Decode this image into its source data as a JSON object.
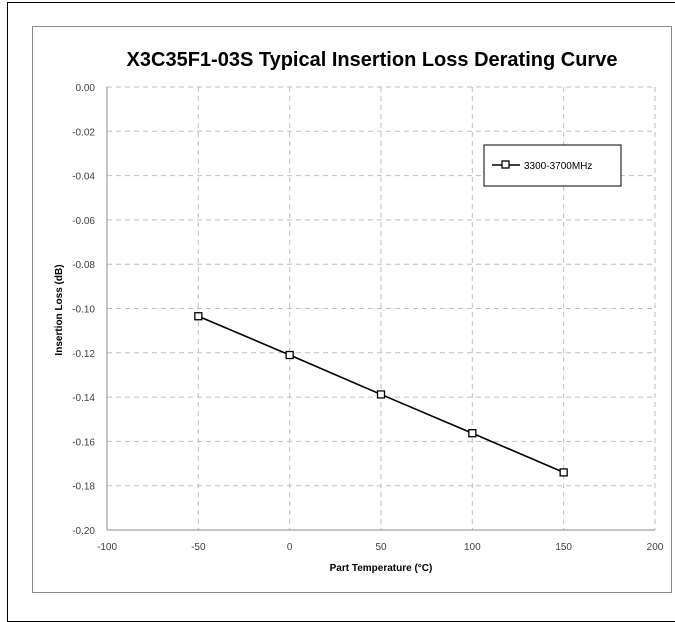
{
  "chart_data": {
    "type": "line",
    "title": "X3C35F1-03S Typical Insertion Loss Derating Curve",
    "xlabel": "Part Temperature (°C)",
    "ylabel": "Insertion Loss (dB)",
    "xlim": [
      -100,
      200
    ],
    "ylim": [
      -0.2,
      0
    ],
    "x_ticks": [
      -100,
      -50,
      0,
      50,
      100,
      150,
      200
    ],
    "y_ticks": [
      "0.00",
      "-0.02",
      "-0.04",
      "-0.06",
      "-0.08",
      "-0.10",
      "-0.12",
      "-0.14",
      "-0.16",
      "-0.18",
      "-0.20"
    ],
    "grid": true,
    "legend_position": "top-right",
    "series": [
      {
        "name": "3300-3700MHz",
        "x": [
          -50,
          0,
          50,
          100,
          150
        ],
        "values": [
          -0.1035,
          -0.121,
          -0.1388,
          -0.1563,
          -0.174
        ],
        "marker": "square",
        "color": "#000000"
      }
    ]
  }
}
